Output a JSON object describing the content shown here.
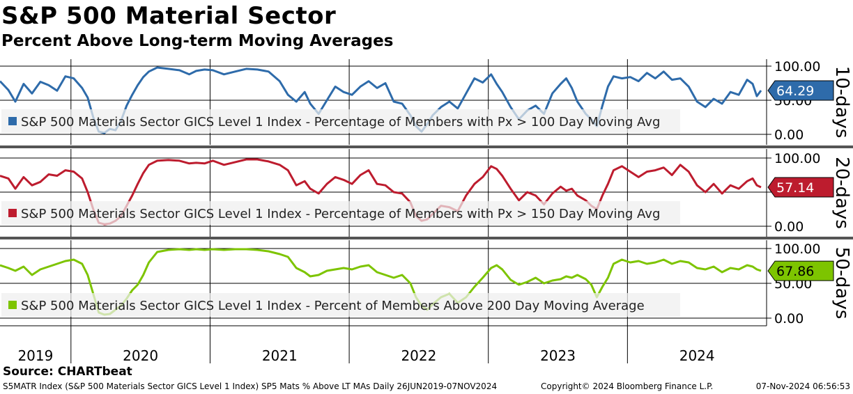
{
  "title": "S&P 500 Material Sector",
  "subtitle": "Percent Above Long-term Moving Averages",
  "source": "Source: CHARTbeat",
  "footer": {
    "left": "S5MATR Index (S&P 500 Materials Sector GICS Level 1 Index) SP5 Mats % Above LT MAs  Daily 26JUN2019-07NOV2024",
    "middle": "Copyright© 2024 Bloomberg Finance L.P.",
    "right": "07-Nov-2024 06:56:53"
  },
  "chart_data": {
    "type": "line",
    "x_axis": {
      "start_year": 2019.49,
      "end_year": 2025.0,
      "year_labels": [
        "2019",
        "2020",
        "2021",
        "2022",
        "2023",
        "2024"
      ],
      "year_starts": [
        2020,
        2021,
        2022,
        2023,
        2024
      ]
    },
    "y_range": [
      0,
      100
    ],
    "y_tick_labels": [
      "100.00",
      "50.00",
      "0.00"
    ],
    "panels": [
      {
        "period_label": "10-days",
        "color": "#2E6BAA",
        "faded_color": "#8FB1D6",
        "last_value": "64.29",
        "legend": "S&P 500 Materials Sector GICS Level 1 Index - Percentage of Members with Px > 100 Day Moving Avg",
        "points": [
          [
            2019.49,
            78
          ],
          [
            2019.55,
            65
          ],
          [
            2019.6,
            48
          ],
          [
            2019.66,
            74
          ],
          [
            2019.72,
            60
          ],
          [
            2019.78,
            77
          ],
          [
            2019.84,
            72
          ],
          [
            2019.9,
            64
          ],
          [
            2019.96,
            85
          ],
          [
            2020.02,
            82
          ],
          [
            2020.08,
            68
          ],
          [
            2020.12,
            54
          ],
          [
            2020.16,
            25
          ],
          [
            2020.2,
            4
          ],
          [
            2020.24,
            2
          ],
          [
            2020.28,
            8
          ],
          [
            2020.32,
            6
          ],
          [
            2020.36,
            20
          ],
          [
            2020.4,
            42
          ],
          [
            2020.44,
            58
          ],
          [
            2020.48,
            72
          ],
          [
            2020.52,
            84
          ],
          [
            2020.56,
            92
          ],
          [
            2020.62,
            98
          ],
          [
            2020.7,
            96
          ],
          [
            2020.78,
            94
          ],
          [
            2020.85,
            88
          ],
          [
            2020.9,
            93
          ],
          [
            2020.96,
            95
          ],
          [
            2021.02,
            94
          ],
          [
            2021.1,
            88
          ],
          [
            2021.18,
            92
          ],
          [
            2021.26,
            96
          ],
          [
            2021.34,
            95
          ],
          [
            2021.42,
            92
          ],
          [
            2021.5,
            78
          ],
          [
            2021.56,
            58
          ],
          [
            2021.62,
            48
          ],
          [
            2021.68,
            62
          ],
          [
            2021.72,
            45
          ],
          [
            2021.78,
            30
          ],
          [
            2021.84,
            50
          ],
          [
            2021.9,
            70
          ],
          [
            2021.96,
            62
          ],
          [
            2022.02,
            58
          ],
          [
            2022.08,
            70
          ],
          [
            2022.14,
            78
          ],
          [
            2022.2,
            68
          ],
          [
            2022.26,
            75
          ],
          [
            2022.32,
            48
          ],
          [
            2022.38,
            45
          ],
          [
            2022.44,
            28
          ],
          [
            2022.48,
            12
          ],
          [
            2022.52,
            4
          ],
          [
            2022.56,
            15
          ],
          [
            2022.6,
            28
          ],
          [
            2022.66,
            40
          ],
          [
            2022.72,
            48
          ],
          [
            2022.78,
            38
          ],
          [
            2022.84,
            60
          ],
          [
            2022.9,
            82
          ],
          [
            2022.96,
            76
          ],
          [
            2023.02,
            88
          ],
          [
            2023.06,
            74
          ],
          [
            2023.1,
            62
          ],
          [
            2023.16,
            40
          ],
          [
            2023.22,
            22
          ],
          [
            2023.28,
            35
          ],
          [
            2023.34,
            42
          ],
          [
            2023.4,
            30
          ],
          [
            2023.46,
            60
          ],
          [
            2023.52,
            74
          ],
          [
            2023.56,
            82
          ],
          [
            2023.6,
            68
          ],
          [
            2023.64,
            48
          ],
          [
            2023.7,
            30
          ],
          [
            2023.74,
            22
          ],
          [
            2023.78,
            12
          ],
          [
            2023.82,
            42
          ],
          [
            2023.86,
            70
          ],
          [
            2023.9,
            85
          ],
          [
            2023.96,
            82
          ],
          [
            2024.02,
            84
          ],
          [
            2024.08,
            78
          ],
          [
            2024.14,
            90
          ],
          [
            2024.2,
            82
          ],
          [
            2024.26,
            92
          ],
          [
            2024.32,
            80
          ],
          [
            2024.38,
            82
          ],
          [
            2024.44,
            70
          ],
          [
            2024.5,
            48
          ],
          [
            2024.56,
            40
          ],
          [
            2024.62,
            52
          ],
          [
            2024.68,
            45
          ],
          [
            2024.74,
            62
          ],
          [
            2024.8,
            58
          ],
          [
            2024.86,
            80
          ],
          [
            2024.9,
            74
          ],
          [
            2024.93,
            56
          ],
          [
            2024.96,
            64.29
          ]
        ]
      },
      {
        "period_label": "20-days",
        "color": "#BD1C2E",
        "faded_color": "#DE8D95",
        "last_value": "57.14",
        "legend": "S&P 500 Materials Sector GICS Level 1 Index - Percentage of Members with Px > 150 Day Moving Avg",
        "points": [
          [
            2019.49,
            74
          ],
          [
            2019.55,
            70
          ],
          [
            2019.6,
            55
          ],
          [
            2019.66,
            72
          ],
          [
            2019.72,
            60
          ],
          [
            2019.78,
            65
          ],
          [
            2019.84,
            76
          ],
          [
            2019.9,
            74
          ],
          [
            2019.96,
            82
          ],
          [
            2020.02,
            80
          ],
          [
            2020.08,
            70
          ],
          [
            2020.12,
            50
          ],
          [
            2020.16,
            25
          ],
          [
            2020.2,
            5
          ],
          [
            2020.24,
            3
          ],
          [
            2020.28,
            4
          ],
          [
            2020.32,
            8
          ],
          [
            2020.36,
            15
          ],
          [
            2020.4,
            30
          ],
          [
            2020.44,
            45
          ],
          [
            2020.48,
            62
          ],
          [
            2020.52,
            78
          ],
          [
            2020.56,
            90
          ],
          [
            2020.62,
            96
          ],
          [
            2020.7,
            97
          ],
          [
            2020.78,
            96
          ],
          [
            2020.85,
            92
          ],
          [
            2020.9,
            93
          ],
          [
            2020.96,
            92
          ],
          [
            2021.02,
            96
          ],
          [
            2021.1,
            90
          ],
          [
            2021.18,
            94
          ],
          [
            2021.26,
            98
          ],
          [
            2021.34,
            98
          ],
          [
            2021.42,
            95
          ],
          [
            2021.5,
            90
          ],
          [
            2021.56,
            82
          ],
          [
            2021.62,
            60
          ],
          [
            2021.68,
            66
          ],
          [
            2021.72,
            55
          ],
          [
            2021.78,
            48
          ],
          [
            2021.84,
            62
          ],
          [
            2021.9,
            72
          ],
          [
            2021.96,
            68
          ],
          [
            2022.02,
            62
          ],
          [
            2022.08,
            75
          ],
          [
            2022.14,
            82
          ],
          [
            2022.2,
            62
          ],
          [
            2022.26,
            60
          ],
          [
            2022.32,
            50
          ],
          [
            2022.38,
            48
          ],
          [
            2022.44,
            35
          ],
          [
            2022.48,
            15
          ],
          [
            2022.52,
            8
          ],
          [
            2022.56,
            10
          ],
          [
            2022.6,
            18
          ],
          [
            2022.66,
            30
          ],
          [
            2022.72,
            28
          ],
          [
            2022.78,
            22
          ],
          [
            2022.84,
            45
          ],
          [
            2022.9,
            62
          ],
          [
            2022.96,
            72
          ],
          [
            2023.02,
            88
          ],
          [
            2023.06,
            84
          ],
          [
            2023.1,
            74
          ],
          [
            2023.16,
            55
          ],
          [
            2023.22,
            38
          ],
          [
            2023.28,
            50
          ],
          [
            2023.34,
            45
          ],
          [
            2023.4,
            32
          ],
          [
            2023.46,
            48
          ],
          [
            2023.52,
            58
          ],
          [
            2023.56,
            52
          ],
          [
            2023.6,
            55
          ],
          [
            2023.64,
            45
          ],
          [
            2023.7,
            38
          ],
          [
            2023.74,
            30
          ],
          [
            2023.78,
            25
          ],
          [
            2023.82,
            45
          ],
          [
            2023.86,
            62
          ],
          [
            2023.9,
            82
          ],
          [
            2023.96,
            88
          ],
          [
            2024.02,
            80
          ],
          [
            2024.08,
            72
          ],
          [
            2024.14,
            80
          ],
          [
            2024.2,
            82
          ],
          [
            2024.26,
            86
          ],
          [
            2024.32,
            75
          ],
          [
            2024.38,
            90
          ],
          [
            2024.44,
            80
          ],
          [
            2024.5,
            60
          ],
          [
            2024.56,
            50
          ],
          [
            2024.62,
            62
          ],
          [
            2024.68,
            48
          ],
          [
            2024.74,
            60
          ],
          [
            2024.8,
            55
          ],
          [
            2024.86,
            66
          ],
          [
            2024.9,
            70
          ],
          [
            2024.93,
            60
          ],
          [
            2024.96,
            57.14
          ]
        ]
      },
      {
        "period_label": "50-days",
        "color": "#7DC400",
        "faded_color": "#BFE08A",
        "last_value": "67.86",
        "legend": "S&P 500 Materials Sector GICS Level 1 Index - Percent of Members Above 200 Day Moving Average",
        "points": [
          [
            2019.49,
            76
          ],
          [
            2019.55,
            72
          ],
          [
            2019.6,
            68
          ],
          [
            2019.66,
            74
          ],
          [
            2019.72,
            62
          ],
          [
            2019.78,
            70
          ],
          [
            2019.84,
            74
          ],
          [
            2019.9,
            78
          ],
          [
            2019.96,
            82
          ],
          [
            2020.02,
            84
          ],
          [
            2020.08,
            78
          ],
          [
            2020.12,
            62
          ],
          [
            2020.16,
            35
          ],
          [
            2020.2,
            8
          ],
          [
            2020.24,
            5
          ],
          [
            2020.28,
            6
          ],
          [
            2020.32,
            12
          ],
          [
            2020.36,
            18
          ],
          [
            2020.4,
            28
          ],
          [
            2020.44,
            40
          ],
          [
            2020.48,
            48
          ],
          [
            2020.52,
            62
          ],
          [
            2020.56,
            80
          ],
          [
            2020.62,
            95
          ],
          [
            2020.7,
            98
          ],
          [
            2020.78,
            99
          ],
          [
            2020.85,
            98
          ],
          [
            2020.9,
            99
          ],
          [
            2020.96,
            98
          ],
          [
            2021.02,
            99
          ],
          [
            2021.1,
            98
          ],
          [
            2021.18,
            99
          ],
          [
            2021.26,
            99
          ],
          [
            2021.34,
            98
          ],
          [
            2021.42,
            96
          ],
          [
            2021.5,
            92
          ],
          [
            2021.56,
            88
          ],
          [
            2021.62,
            72
          ],
          [
            2021.68,
            66
          ],
          [
            2021.72,
            60
          ],
          [
            2021.78,
            62
          ],
          [
            2021.84,
            68
          ],
          [
            2021.9,
            70
          ],
          [
            2021.96,
            72
          ],
          [
            2022.02,
            70
          ],
          [
            2022.08,
            74
          ],
          [
            2022.14,
            76
          ],
          [
            2022.2,
            66
          ],
          [
            2022.26,
            62
          ],
          [
            2022.32,
            58
          ],
          [
            2022.38,
            62
          ],
          [
            2022.44,
            50
          ],
          [
            2022.48,
            30
          ],
          [
            2022.52,
            18
          ],
          [
            2022.56,
            12
          ],
          [
            2022.6,
            20
          ],
          [
            2022.66,
            30
          ],
          [
            2022.72,
            35
          ],
          [
            2022.78,
            22
          ],
          [
            2022.84,
            30
          ],
          [
            2022.9,
            45
          ],
          [
            2022.96,
            58
          ],
          [
            2023.02,
            72
          ],
          [
            2023.06,
            76
          ],
          [
            2023.1,
            70
          ],
          [
            2023.16,
            55
          ],
          [
            2023.22,
            48
          ],
          [
            2023.28,
            52
          ],
          [
            2023.34,
            58
          ],
          [
            2023.4,
            50
          ],
          [
            2023.46,
            54
          ],
          [
            2023.52,
            56
          ],
          [
            2023.56,
            60
          ],
          [
            2023.6,
            58
          ],
          [
            2023.64,
            62
          ],
          [
            2023.7,
            56
          ],
          [
            2023.74,
            48
          ],
          [
            2023.78,
            30
          ],
          [
            2023.82,
            45
          ],
          [
            2023.86,
            58
          ],
          [
            2023.9,
            78
          ],
          [
            2023.96,
            84
          ],
          [
            2024.02,
            80
          ],
          [
            2024.08,
            82
          ],
          [
            2024.14,
            78
          ],
          [
            2024.2,
            80
          ],
          [
            2024.26,
            84
          ],
          [
            2024.32,
            78
          ],
          [
            2024.38,
            82
          ],
          [
            2024.44,
            80
          ],
          [
            2024.5,
            72
          ],
          [
            2024.56,
            70
          ],
          [
            2024.62,
            74
          ],
          [
            2024.68,
            66
          ],
          [
            2024.74,
            72
          ],
          [
            2024.8,
            70
          ],
          [
            2024.86,
            76
          ],
          [
            2024.9,
            74
          ],
          [
            2024.93,
            70
          ],
          [
            2024.96,
            67.86
          ]
        ]
      }
    ]
  }
}
